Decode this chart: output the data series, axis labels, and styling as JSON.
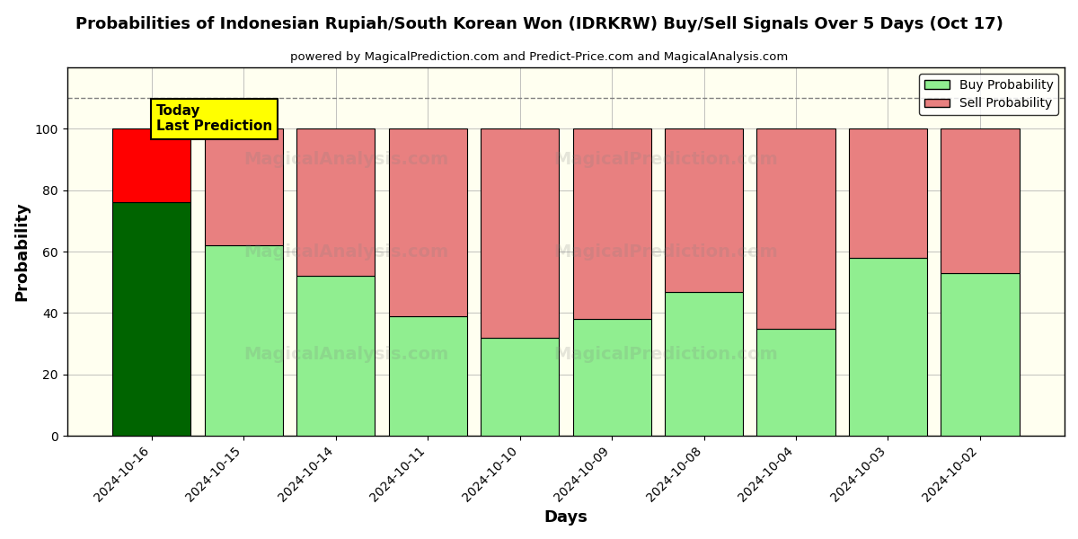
{
  "title": "Probabilities of Indonesian Rupiah/South Korean Won (IDRKRW) Buy/Sell Signals Over 5 Days (Oct 17)",
  "subtitle": "powered by MagicalPrediction.com and Predict-Price.com and MagicalAnalysis.com",
  "xlabel": "Days",
  "ylabel": "Probability",
  "dates": [
    "2024-10-16",
    "2024-10-15",
    "2024-10-14",
    "2024-10-11",
    "2024-10-10",
    "2024-10-09",
    "2024-10-08",
    "2024-10-04",
    "2024-10-03",
    "2024-10-02"
  ],
  "buy_probs": [
    76,
    62,
    52,
    39,
    32,
    38,
    47,
    35,
    58,
    53
  ],
  "sell_probs": [
    24,
    38,
    48,
    61,
    68,
    62,
    53,
    65,
    42,
    47
  ],
  "today_bar_buy_color": "#006400",
  "today_bar_sell_color": "#FF0000",
  "regular_buy_color": "#90EE90",
  "regular_sell_color": "#E88080",
  "today_annotation_bg": "#FFFF00",
  "today_annotation_text": "Today\nLast Prediction",
  "dashed_line_y": 110,
  "ylim": [
    0,
    120
  ],
  "yticks": [
    0,
    20,
    40,
    60,
    80,
    100
  ],
  "legend_buy_label": "Buy Probability",
  "legend_sell_label": "Sell Probability",
  "fig_width": 12,
  "fig_height": 6,
  "background_color": "#ffffff",
  "grid_color": "#aaaaaa",
  "plot_bg_color": "#fffff0"
}
